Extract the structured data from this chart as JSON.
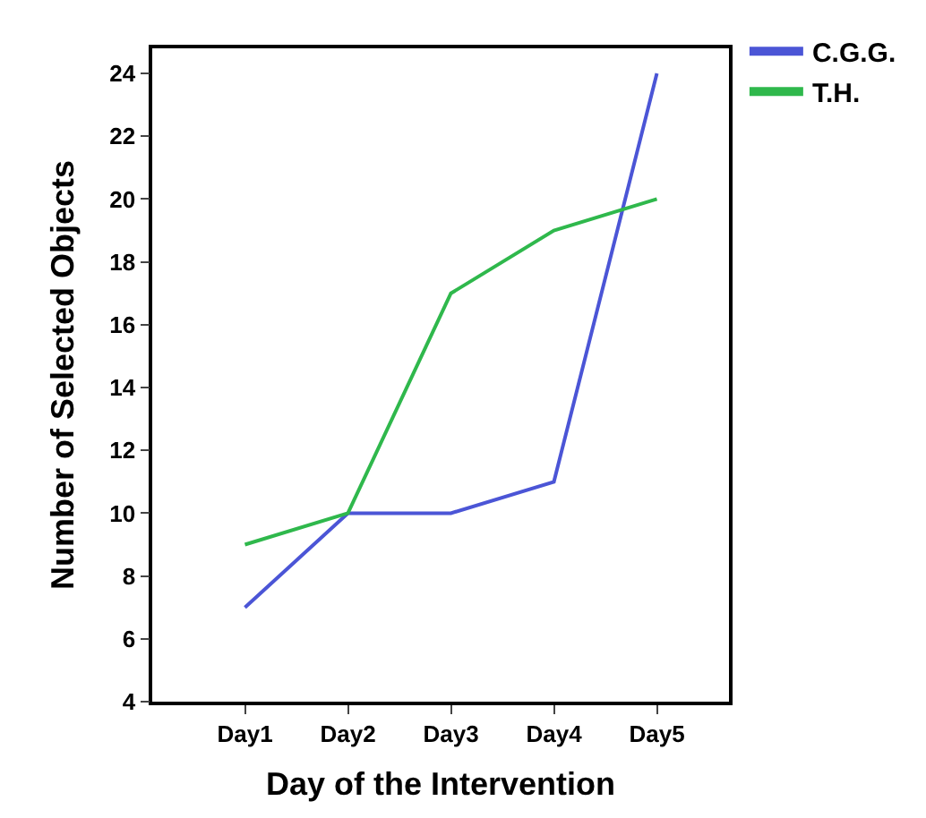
{
  "chart_data": {
    "type": "line",
    "xlabel": "Day of the Intervention",
    "ylabel": "Number of Selected Objects",
    "categories": [
      "Day1",
      "Day2",
      "Day3",
      "Day4",
      "Day5"
    ],
    "series": [
      {
        "name": "C.G.G.",
        "color": "#4b55d6",
        "values": [
          7,
          10,
          10,
          11,
          24
        ]
      },
      {
        "name": "T.H.",
        "color": "#2fb84c",
        "values": [
          9,
          10,
          17,
          19,
          20
        ]
      }
    ],
    "ylim": [
      4,
      24.8
    ],
    "yticks": [
      4,
      6,
      8,
      10,
      12,
      14,
      16,
      18,
      20,
      22,
      24
    ],
    "legend": "top right",
    "marker": "none",
    "line_style": "solid"
  }
}
